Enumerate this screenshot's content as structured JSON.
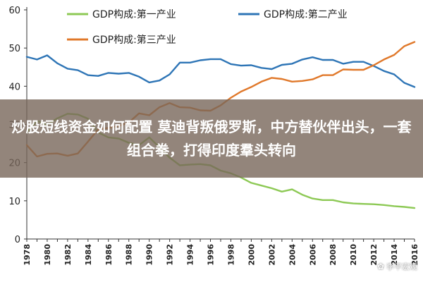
{
  "chart_data": {
    "type": "line",
    "title": "",
    "xlabel": "",
    "ylabel": "",
    "ylim": [
      0,
      60
    ],
    "yticks": [
      0,
      10,
      20,
      30,
      40,
      50,
      60
    ],
    "xlim": [
      1978,
      2016
    ],
    "xticks": [
      1978,
      1980,
      1982,
      1984,
      1986,
      1988,
      1990,
      1992,
      1994,
      1996,
      1998,
      2000,
      2002,
      2004,
      2006,
      2008,
      2010,
      2012,
      2014,
      2016
    ],
    "grid": false,
    "legend_position": "top",
    "series": [
      {
        "name": "GDP构成:第一产业",
        "color": "#8DC955",
        "x": [
          1978,
          1979,
          1980,
          1981,
          1982,
          1983,
          1984,
          1985,
          1986,
          1987,
          1988,
          1989,
          1990,
          1991,
          1992,
          1993,
          1994,
          1995,
          1996,
          1997,
          1998,
          1999,
          2000,
          2001,
          2002,
          2003,
          2004,
          2005,
          2006,
          2007,
          2008,
          2009,
          2010,
          2011,
          2012,
          2013,
          2014,
          2015,
          2016
        ],
        "values": [
          27.9,
          30.9,
          29.9,
          31.6,
          32.8,
          32.6,
          31.5,
          27.9,
          26.6,
          26.3,
          25.2,
          24.6,
          26.6,
          24.0,
          21.3,
          19.3,
          19.5,
          19.6,
          19.3,
          17.9,
          17.2,
          16.1,
          14.7,
          14.0,
          13.3,
          12.4,
          13.0,
          11.6,
          10.6,
          10.2,
          10.2,
          9.6,
          9.3,
          9.2,
          9.1,
          8.9,
          8.6,
          8.4,
          8.1
        ]
      },
      {
        "name": "GDP构成:第二产业",
        "color": "#2E75B6",
        "x": [
          1978,
          1979,
          1980,
          1981,
          1982,
          1983,
          1984,
          1985,
          1986,
          1987,
          1988,
          1989,
          1990,
          1991,
          1992,
          1993,
          1994,
          1995,
          1996,
          1997,
          1998,
          1999,
          2000,
          2001,
          2002,
          2003,
          2004,
          2005,
          2006,
          2007,
          2008,
          2009,
          2010,
          2011,
          2012,
          2013,
          2014,
          2015,
          2016
        ],
        "values": [
          47.7,
          47.0,
          48.1,
          46.0,
          44.6,
          44.2,
          42.9,
          42.7,
          43.5,
          43.3,
          43.5,
          42.5,
          41.0,
          41.5,
          43.1,
          46.2,
          46.2,
          46.8,
          47.1,
          47.1,
          45.8,
          45.4,
          45.5,
          44.8,
          44.5,
          45.6,
          45.9,
          47.0,
          47.6,
          46.9,
          46.9,
          45.9,
          46.4,
          46.4,
          45.3,
          44.0,
          43.1,
          40.9,
          39.8
        ]
      },
      {
        "name": "GDP构成:第三产业",
        "color": "#E0782A",
        "x": [
          1978,
          1979,
          1980,
          1981,
          1982,
          1983,
          1984,
          1985,
          1986,
          1987,
          1988,
          1989,
          1990,
          1991,
          1992,
          1993,
          1994,
          1995,
          1996,
          1997,
          1998,
          1999,
          2000,
          2001,
          2002,
          2003,
          2004,
          2005,
          2006,
          2007,
          2008,
          2009,
          2010,
          2011,
          2012,
          2013,
          2014,
          2015,
          2016
        ],
        "values": [
          24.6,
          21.6,
          22.3,
          22.4,
          21.8,
          22.4,
          25.5,
          28.7,
          29.1,
          29.6,
          30.5,
          32.9,
          32.4,
          34.5,
          35.6,
          34.5,
          34.4,
          33.7,
          33.6,
          35.0,
          37.0,
          38.6,
          39.8,
          41.2,
          42.2,
          41.9,
          41.2,
          41.4,
          41.8,
          42.9,
          42.9,
          44.4,
          44.3,
          44.3,
          45.5,
          47.0,
          48.2,
          50.5,
          51.6
        ]
      }
    ]
  },
  "overlay": {
    "title": "炒股短线资金如何配置 莫迪背叛俄罗斯，中方替伙伴出头，一套组合拳，打得印度羣头转向"
  },
  "watermark": {
    "text": "李平宏观"
  }
}
